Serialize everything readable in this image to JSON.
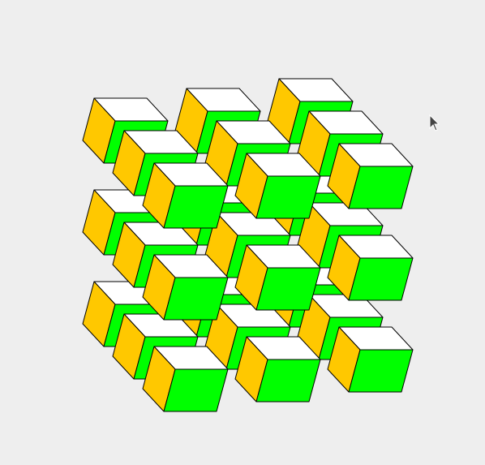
{
  "canvas": {
    "background": "#eeeeee",
    "stroke": "#000000",
    "face_colors": {
      "top": "#ffffff",
      "front": "#00ff00",
      "side": "#ffc800"
    },
    "grid": {
      "columns": 3,
      "rows": 3,
      "layers": 3
    }
  },
  "cursor": {
    "icon": "arrow-pointer-icon"
  }
}
